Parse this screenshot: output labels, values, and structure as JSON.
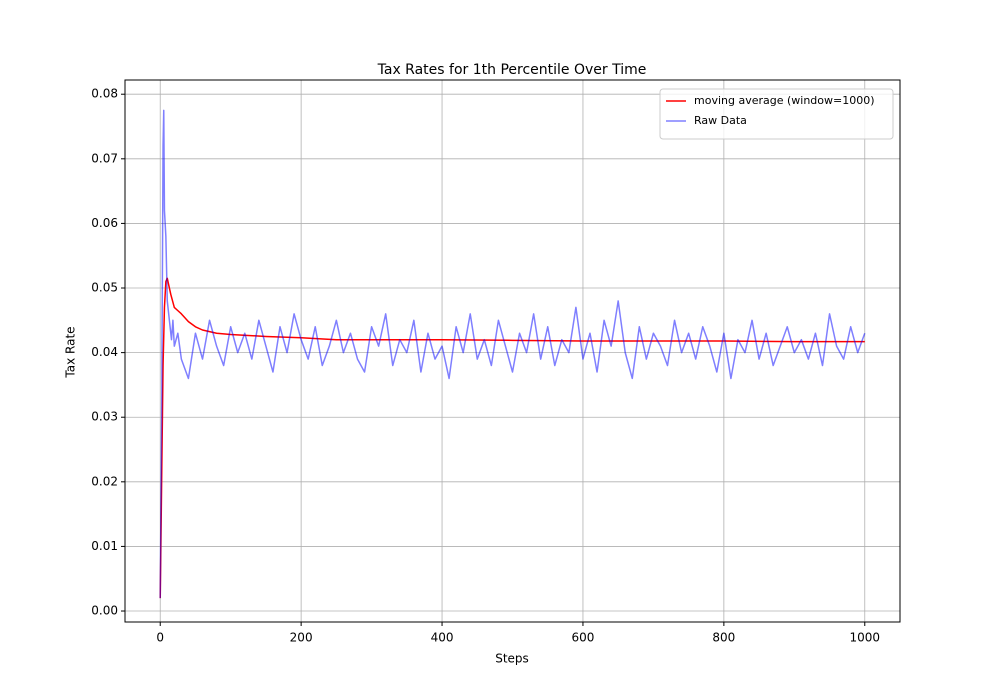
{
  "chart_data": {
    "type": "line",
    "title": "Tax Rates for 1th Percentile Over Time",
    "x_label": "Steps",
    "y_label": "Tax Rate",
    "xlim": [
      -50,
      1050
    ],
    "ylim": [
      -0.0017,
      0.0822
    ],
    "xticks": [
      0,
      200,
      400,
      600,
      800,
      1000
    ],
    "yticks": [
      {
        "value": 0,
        "label": "0.00"
      },
      0.01,
      0.02,
      0.03,
      0.04,
      0.05,
      0.06,
      0.07,
      0.08
    ],
    "grid": true,
    "legend": "upper right",
    "series": [
      {
        "name": "moving average (window=1000)",
        "color": "#ff0000",
        "alpha": 1,
        "x": [
          0,
          2,
          4,
          6,
          8,
          10,
          12,
          15,
          20,
          25,
          30,
          40,
          50,
          60,
          80,
          100,
          150,
          200,
          250,
          300,
          400,
          500,
          600,
          700,
          800,
          900,
          1000
        ],
        "values": [
          0.002,
          0.02,
          0.038,
          0.047,
          0.051,
          0.0515,
          0.0505,
          0.049,
          0.047,
          0.0465,
          0.046,
          0.0448,
          0.044,
          0.0435,
          0.043,
          0.0428,
          0.0425,
          0.0423,
          0.042,
          0.042,
          0.042,
          0.0419,
          0.0418,
          0.0418,
          0.0418,
          0.0417,
          0.0417
        ]
      },
      {
        "name": "Raw Data",
        "color": "#0000ff",
        "alpha": 0.5,
        "x": [
          0,
          2,
          3,
          4,
          5,
          6,
          7,
          8,
          10,
          12,
          14,
          16,
          18,
          20,
          25,
          30,
          40,
          50,
          60,
          70,
          80,
          90,
          100,
          110,
          120,
          130,
          140,
          150,
          160,
          170,
          180,
          190,
          200,
          210,
          220,
          230,
          240,
          250,
          260,
          270,
          280,
          290,
          300,
          310,
          320,
          330,
          340,
          350,
          360,
          370,
          380,
          390,
          400,
          410,
          420,
          430,
          440,
          450,
          460,
          470,
          480,
          490,
          500,
          510,
          520,
          530,
          540,
          550,
          560,
          570,
          580,
          590,
          600,
          610,
          620,
          630,
          640,
          650,
          660,
          670,
          680,
          690,
          700,
          710,
          720,
          730,
          740,
          750,
          760,
          770,
          780,
          790,
          800,
          810,
          820,
          830,
          840,
          850,
          860,
          870,
          880,
          890,
          900,
          910,
          920,
          930,
          940,
          950,
          960,
          970,
          980,
          990,
          1000
        ],
        "values": [
          0.002,
          0.03,
          0.05,
          0.072,
          0.0775,
          0.062,
          0.06,
          0.058,
          0.048,
          0.046,
          0.044,
          0.042,
          0.045,
          0.041,
          0.043,
          0.039,
          0.036,
          0.043,
          0.039,
          0.045,
          0.041,
          0.038,
          0.044,
          0.04,
          0.043,
          0.039,
          0.045,
          0.041,
          0.037,
          0.044,
          0.04,
          0.046,
          0.042,
          0.039,
          0.044,
          0.038,
          0.041,
          0.045,
          0.04,
          0.043,
          0.039,
          0.037,
          0.044,
          0.041,
          0.046,
          0.038,
          0.042,
          0.04,
          0.045,
          0.037,
          0.043,
          0.039,
          0.041,
          0.036,
          0.044,
          0.04,
          0.046,
          0.039,
          0.042,
          0.038,
          0.045,
          0.041,
          0.037,
          0.043,
          0.04,
          0.046,
          0.039,
          0.044,
          0.038,
          0.042,
          0.04,
          0.047,
          0.039,
          0.043,
          0.037,
          0.045,
          0.041,
          0.048,
          0.04,
          0.036,
          0.044,
          0.039,
          0.043,
          0.041,
          0.038,
          0.045,
          0.04,
          0.043,
          0.039,
          0.044,
          0.041,
          0.037,
          0.043,
          0.036,
          0.042,
          0.04,
          0.045,
          0.039,
          0.043,
          0.038,
          0.041,
          0.044,
          0.04,
          0.042,
          0.039,
          0.043,
          0.038,
          0.046,
          0.041,
          0.039,
          0.044,
          0.04,
          0.043
        ]
      }
    ]
  }
}
